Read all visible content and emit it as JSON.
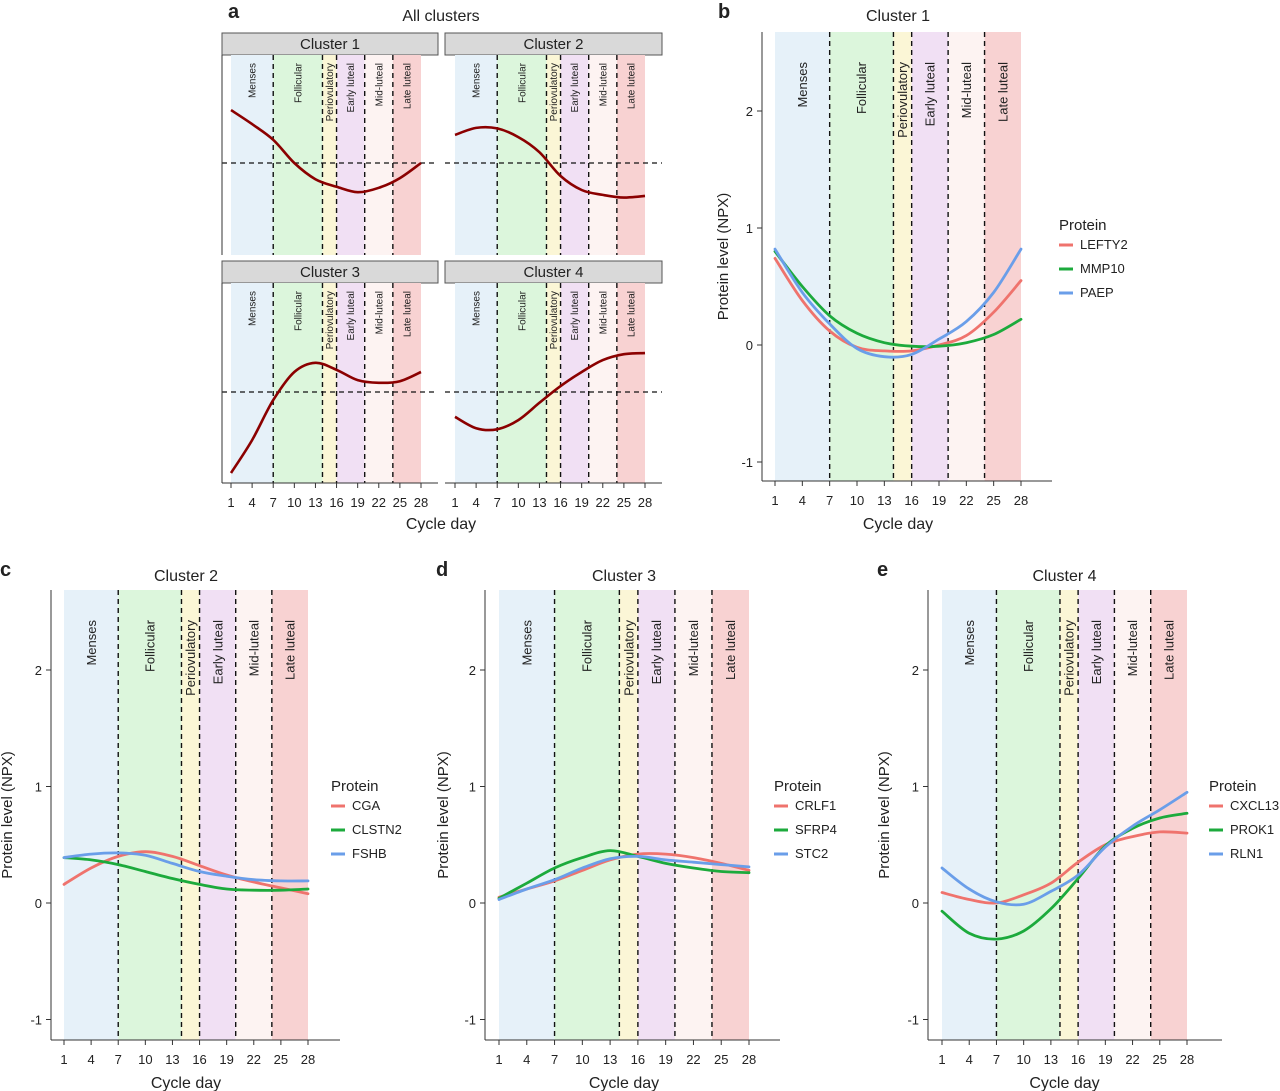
{
  "phases": [
    {
      "label": "Menses",
      "start": 1,
      "end": 7,
      "color": "#e6f1f9"
    },
    {
      "label": "Follicular",
      "start": 7,
      "end": 14,
      "color": "#dcf6dc"
    },
    {
      "label": "Periovulatory",
      "start": 14,
      "end": 16,
      "color": "#fbf6d6"
    },
    {
      "label": "Early luteal",
      "start": 16,
      "end": 20,
      "color": "#f1e0f4"
    },
    {
      "label": "Mid-luteal",
      "start": 20,
      "end": 24,
      "color": "#fdf3f2"
    },
    {
      "label": "Late luteal",
      "start": 24,
      "end": 28,
      "color": "#f8d2d2"
    }
  ],
  "chart_data": [
    {
      "panel": "a",
      "type": "line",
      "title": "All clusters",
      "xlabel": "Cycle day",
      "xticks": [
        1,
        4,
        7,
        10,
        13,
        16,
        19,
        22,
        25,
        28
      ],
      "line_color": "#8b0000",
      "reference_line": 0,
      "x": [
        1,
        4,
        7,
        10,
        13,
        16,
        19,
        22,
        25,
        28
      ],
      "facets": [
        {
          "title": "Cluster 1",
          "values": [
            0.98,
            0.72,
            0.43,
            0.0,
            -0.3,
            -0.44,
            -0.54,
            -0.46,
            -0.28,
            0.0
          ]
        },
        {
          "title": "Cluster 2",
          "values": [
            0.52,
            0.65,
            0.64,
            0.48,
            0.2,
            -0.24,
            -0.5,
            -0.59,
            -0.64,
            -0.61
          ]
        },
        {
          "title": "Cluster 3",
          "values": [
            -1.5,
            -0.89,
            -0.15,
            0.37,
            0.54,
            0.41,
            0.22,
            0.17,
            0.2,
            0.37
          ]
        },
        {
          "title": "Cluster 4",
          "values": [
            -0.46,
            -0.67,
            -0.69,
            -0.52,
            -0.2,
            0.11,
            0.37,
            0.59,
            0.7,
            0.72
          ]
        }
      ]
    },
    {
      "panel": "b",
      "type": "line",
      "title": "Cluster 1",
      "xlabel": "Cycle day",
      "ylabel": "Protein level (NPX)",
      "xticks": [
        1,
        4,
        7,
        10,
        13,
        16,
        19,
        22,
        25,
        28
      ],
      "yticks": [
        -1,
        0,
        1,
        2
      ],
      "ylim": [
        -1.17,
        2.67
      ],
      "legend_title": "Protein",
      "legend": "right",
      "x": [
        1,
        4,
        7,
        10,
        13,
        16,
        19,
        22,
        25,
        28
      ],
      "series": [
        {
          "name": "LEFTY2",
          "color": "#ef736d",
          "values": [
            0.74,
            0.38,
            0.12,
            -0.02,
            -0.05,
            -0.05,
            0.0,
            0.08,
            0.28,
            0.55
          ]
        },
        {
          "name": "MMP10",
          "color": "#1caa3c",
          "values": [
            0.8,
            0.5,
            0.25,
            0.1,
            0.02,
            -0.01,
            -0.01,
            0.02,
            0.09,
            0.22
          ]
        },
        {
          "name": "PAEP",
          "color": "#6a9ee9",
          "values": [
            0.82,
            0.45,
            0.18,
            -0.03,
            -0.1,
            -0.08,
            0.05,
            0.2,
            0.45,
            0.82
          ]
        }
      ]
    },
    {
      "panel": "c",
      "type": "line",
      "title": "Cluster 2",
      "xlabel": "Cycle day",
      "ylabel": "Protein level (NPX)",
      "xticks": [
        1,
        4,
        7,
        10,
        13,
        16,
        19,
        22,
        25,
        28
      ],
      "yticks": [
        -1,
        0,
        1,
        2
      ],
      "ylim": [
        -1.17,
        2.67
      ],
      "legend_title": "Protein",
      "legend": "right",
      "x": [
        1,
        4,
        7,
        10,
        13,
        16,
        19,
        22,
        25,
        28
      ],
      "series": [
        {
          "name": "CGA",
          "color": "#ef736d",
          "values": [
            0.16,
            0.3,
            0.4,
            0.44,
            0.4,
            0.32,
            0.24,
            0.18,
            0.13,
            0.08
          ]
        },
        {
          "name": "CLSTN2",
          "color": "#1caa3c",
          "values": [
            0.39,
            0.37,
            0.33,
            0.27,
            0.21,
            0.16,
            0.12,
            0.11,
            0.11,
            0.12
          ]
        },
        {
          "name": "FSHB",
          "color": "#6a9ee9",
          "values": [
            0.39,
            0.42,
            0.43,
            0.41,
            0.34,
            0.27,
            0.23,
            0.2,
            0.19,
            0.19
          ]
        }
      ]
    },
    {
      "panel": "d",
      "type": "line",
      "title": "Cluster 3",
      "xlabel": "Cycle day",
      "ylabel": "Protein level (NPX)",
      "xticks": [
        1,
        4,
        7,
        10,
        13,
        16,
        19,
        22,
        25,
        28
      ],
      "yticks": [
        -1,
        0,
        1,
        2
      ],
      "ylim": [
        -1.17,
        2.67
      ],
      "legend_title": "Protein",
      "legend": "right",
      "x": [
        1,
        4,
        7,
        10,
        13,
        16,
        19,
        22,
        25,
        28
      ],
      "series": [
        {
          "name": "CRLF1",
          "color": "#ef736d",
          "values": [
            0.05,
            0.12,
            0.19,
            0.28,
            0.37,
            0.42,
            0.42,
            0.39,
            0.34,
            0.28
          ]
        },
        {
          "name": "SFRP4",
          "color": "#1caa3c",
          "values": [
            0.04,
            0.17,
            0.3,
            0.39,
            0.45,
            0.4,
            0.34,
            0.3,
            0.27,
            0.26
          ]
        },
        {
          "name": "STC2",
          "color": "#6a9ee9",
          "values": [
            0.03,
            0.12,
            0.2,
            0.3,
            0.38,
            0.4,
            0.37,
            0.35,
            0.33,
            0.31
          ]
        }
      ]
    },
    {
      "panel": "e",
      "type": "line",
      "title": "Cluster 4",
      "xlabel": "Cycle day",
      "ylabel": "Protein level (NPX)",
      "xticks": [
        1,
        4,
        7,
        10,
        13,
        16,
        19,
        22,
        25,
        28
      ],
      "yticks": [
        -1,
        0,
        1,
        2
      ],
      "ylim": [
        -1.17,
        2.67
      ],
      "legend_title": "Protein",
      "legend": "right",
      "x": [
        1,
        4,
        7,
        10,
        13,
        16,
        19,
        22,
        25,
        28
      ],
      "series": [
        {
          "name": "CXCL13",
          "color": "#ef736d",
          "values": [
            0.09,
            0.03,
            0.0,
            0.07,
            0.17,
            0.35,
            0.5,
            0.57,
            0.61,
            0.6
          ]
        },
        {
          "name": "PROK1",
          "color": "#1caa3c",
          "values": [
            -0.07,
            -0.26,
            -0.31,
            -0.24,
            -0.05,
            0.21,
            0.49,
            0.64,
            0.73,
            0.77
          ]
        },
        {
          "name": "RLN1",
          "color": "#6a9ee9",
          "values": [
            0.3,
            0.12,
            0.01,
            -0.01,
            0.1,
            0.24,
            0.48,
            0.66,
            0.8,
            0.95
          ]
        }
      ]
    }
  ]
}
